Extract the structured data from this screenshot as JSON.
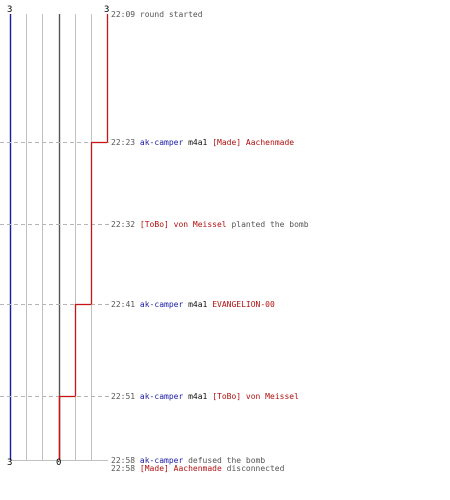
{
  "colors": {
    "team_blue": "#1a1aa8",
    "team_red": "#c81414",
    "grid": "#c0c0c0",
    "zero_line": "#555555",
    "guide": "#b4b4b4",
    "time": "#555555",
    "text": "#555555",
    "weapon": "#111111",
    "red_name": "#b01010"
  },
  "score_axis": {
    "top_left": "3",
    "top_right": "3",
    "bottom_left": "3",
    "bottom_zero": "0"
  },
  "events": [
    {
      "time": "22:09",
      "parts": [
        {
          "t": "round started",
          "c": "text"
        }
      ]
    },
    {
      "time": "22:23",
      "parts": [
        {
          "t": "ak-camper",
          "c": "blue"
        },
        {
          "t": "m4a1",
          "c": "black"
        },
        {
          "t": "[Made] Aachenmade",
          "c": "red"
        }
      ]
    },
    {
      "time": "22:32",
      "parts": [
        {
          "t": "[ToBo] von Meissel",
          "c": "red"
        },
        {
          "t": "planted the bomb",
          "c": "text"
        }
      ]
    },
    {
      "time": "22:41",
      "parts": [
        {
          "t": "ak-camper",
          "c": "blue"
        },
        {
          "t": "m4a1",
          "c": "black"
        },
        {
          "t": "EVANGELION-00",
          "c": "red"
        }
      ]
    },
    {
      "time": "22:51",
      "parts": [
        {
          "t": "ak-camper",
          "c": "blue"
        },
        {
          "t": "m4a1",
          "c": "black"
        },
        {
          "t": "[ToBo] von Meissel",
          "c": "red"
        }
      ]
    },
    {
      "time": "22:58",
      "parts": [
        {
          "t": "ak-camper",
          "c": "blue"
        },
        {
          "t": "defused the bomb",
          "c": "text"
        }
      ]
    },
    {
      "time": "22:58",
      "parts": [
        {
          "t": "[Made] Aachenmade",
          "c": "red"
        },
        {
          "t": "disconnected",
          "c": "text"
        }
      ]
    }
  ],
  "red_alive_series": [
    3,
    2,
    2,
    1,
    0,
    0,
    0
  ]
}
